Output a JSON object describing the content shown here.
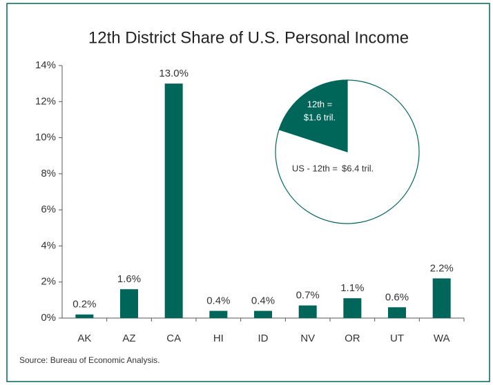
{
  "chart_data": [
    {
      "type": "bar",
      "title": "12th District Share of U.S. Personal Income",
      "categories": [
        "AK",
        "AZ",
        "CA",
        "HI",
        "ID",
        "NV",
        "OR",
        "UT",
        "WA"
      ],
      "values": [
        0.2,
        1.6,
        13.0,
        0.4,
        0.4,
        0.7,
        1.1,
        0.6,
        2.2
      ],
      "value_labels": [
        "0.2%",
        "1.6%",
        "13.0%",
        "0.4%",
        "0.4%",
        "0.7%",
        "1.1%",
        "0.6%",
        "2.2%"
      ],
      "color": "#00665a",
      "ylim": [
        0,
        14
      ],
      "yticks": [
        {
          "value": 0,
          "label": "0%"
        },
        {
          "value": 2,
          "label": "2%"
        },
        {
          "value": 4,
          "label": "4%"
        },
        {
          "value": 6,
          "label": "6%"
        },
        {
          "value": 8,
          "label": "8%"
        },
        {
          "value": 10,
          "label": "10%"
        },
        {
          "value": 12,
          "label": "12%"
        },
        {
          "value": 14,
          "label": "14%"
        }
      ],
      "grid": false,
      "source": "Source: Bureau of Economic Analysis."
    },
    {
      "type": "pie",
      "categories": [
        "12th =",
        "US - 12th ="
      ],
      "values": [
        1.6,
        6.4
      ],
      "value_labels": [
        "$1.6 tril.",
        "$6.4 tril."
      ],
      "colors": [
        "#00665a",
        "#ffffff"
      ]
    }
  ]
}
